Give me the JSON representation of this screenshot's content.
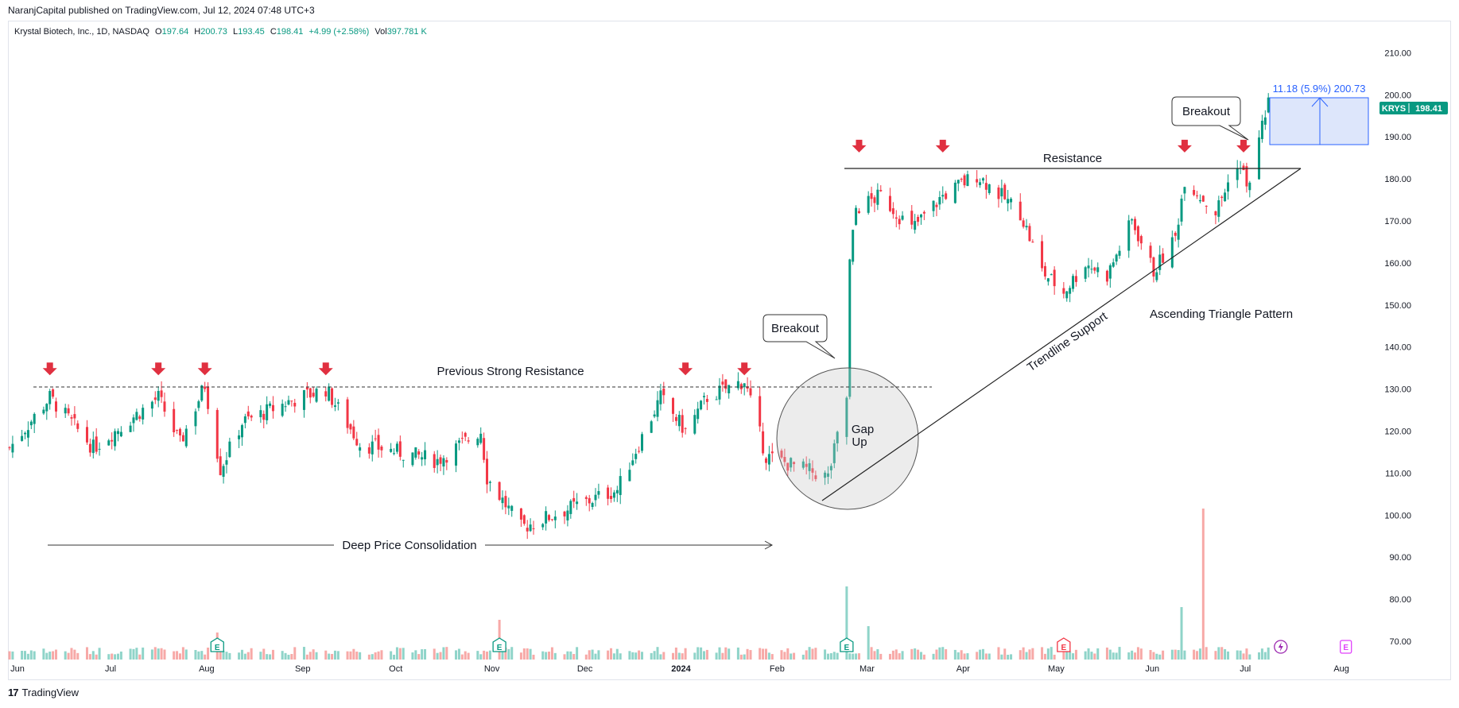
{
  "header": {
    "published": "NaranjCapital published on TradingView.com, Jul 12, 2024 07:48 UTC+3"
  },
  "legend": {
    "symbol": "Krystal Biotech, Inc., 1D, NASDAQ",
    "open_label": "O",
    "open": "197.64",
    "high_label": "H",
    "high": "200.73",
    "low_label": "L",
    "low": "193.45",
    "close_label": "C",
    "close": "198.41",
    "change": "+4.99 (+2.58%)",
    "vol_label": "Vol",
    "volume": "397.781 K"
  },
  "price_tag": {
    "ticker": "KRYS",
    "price": "198.41"
  },
  "footer": {
    "brand": "TradingView"
  },
  "colors": {
    "up": "#089981",
    "down": "#f23645",
    "up_vol": "#8fd4c9",
    "down_vol": "#f7a9a7",
    "arrow": "#e03040",
    "measure": "#2962ff",
    "measure_fill": "#dde6fb",
    "tag_bg": "#089981"
  },
  "annotations": {
    "prev_resistance": "Previous Strong Resistance",
    "consolidation": "Deep Price Consolidation",
    "breakout1": "Breakout",
    "breakout2": "Breakout",
    "gap_line1": "Gap",
    "gap_line2": "Up",
    "resistance": "Resistance",
    "trendline": "Trendline Support",
    "pattern": "Ascending Triangle Pattern",
    "measure": "11.18 (5.9%) 200.73"
  },
  "chart_data": {
    "type": "candlestick",
    "x_axis": {
      "tick_labels": [
        "Jun",
        "Jul",
        "Aug",
        "Sep",
        "Oct",
        "Nov",
        "Dec",
        "2024",
        "Feb",
        "Mar",
        "Apr",
        "May",
        "Jun",
        "Jul",
        "Aug"
      ],
      "range": [
        "2023-06-01",
        "2024-08-12"
      ]
    },
    "y_axis": {
      "tick_labels": [
        "210.00",
        "200.00",
        "190.00",
        "180.00",
        "170.00",
        "160.00",
        "150.00",
        "140.00",
        "130.00",
        "120.00",
        "110.00",
        "100.00",
        "90.00",
        "80.00",
        "70.00"
      ],
      "range": [
        67,
        213
      ],
      "position": "right"
    },
    "grid": false,
    "approx_close_path": [
      {
        "date": "2023-06-01",
        "close": 116
      },
      {
        "date": "2023-06-14",
        "close": 128
      },
      {
        "date": "2023-06-28",
        "close": 116
      },
      {
        "date": "2023-07-19",
        "close": 128
      },
      {
        "date": "2023-07-26",
        "close": 117
      },
      {
        "date": "2023-08-03",
        "close": 131
      },
      {
        "date": "2023-08-08",
        "close": 111
      },
      {
        "date": "2023-08-15",
        "close": 122
      },
      {
        "date": "2023-08-30",
        "close": 127
      },
      {
        "date": "2023-09-11",
        "close": 130
      },
      {
        "date": "2023-09-22",
        "close": 117
      },
      {
        "date": "2023-10-17",
        "close": 113
      },
      {
        "date": "2023-10-31",
        "close": 120
      },
      {
        "date": "2023-11-02",
        "close": 109
      },
      {
        "date": "2023-11-13",
        "close": 97
      },
      {
        "date": "2023-11-30",
        "close": 102
      },
      {
        "date": "2023-12-14",
        "close": 106
      },
      {
        "date": "2023-12-28",
        "close": 128
      },
      {
        "date": "2024-01-05",
        "close": 120
      },
      {
        "date": "2024-01-12",
        "close": 128
      },
      {
        "date": "2024-01-24",
        "close": 132
      },
      {
        "date": "2024-01-31",
        "close": 114
      },
      {
        "date": "2024-02-20",
        "close": 109
      },
      {
        "date": "2024-02-26",
        "close": 128
      },
      {
        "date": "2024-02-27",
        "close": 160
      },
      {
        "date": "2024-02-29",
        "close": 173
      },
      {
        "date": "2024-03-08",
        "close": 176
      },
      {
        "date": "2024-03-18",
        "close": 168
      },
      {
        "date": "2024-03-28",
        "close": 176
      },
      {
        "date": "2024-04-08",
        "close": 181
      },
      {
        "date": "2024-04-22",
        "close": 172
      },
      {
        "date": "2024-04-29",
        "close": 158
      },
      {
        "date": "2024-05-06",
        "close": 153
      },
      {
        "date": "2024-05-13",
        "close": 160
      },
      {
        "date": "2024-05-20",
        "close": 157
      },
      {
        "date": "2024-05-28",
        "close": 170
      },
      {
        "date": "2024-06-04",
        "close": 158
      },
      {
        "date": "2024-06-11",
        "close": 166
      },
      {
        "date": "2024-06-14",
        "close": 180
      },
      {
        "date": "2024-06-24",
        "close": 172
      },
      {
        "date": "2024-07-01",
        "close": 184
      },
      {
        "date": "2024-07-05",
        "close": 178
      },
      {
        "date": "2024-07-08",
        "close": 190
      },
      {
        "date": "2024-07-11",
        "close": 198.41
      }
    ],
    "levels": {
      "previous_strong_resistance": 131,
      "resistance": 184
    },
    "trendline_support": [
      {
        "date": "2024-02-16",
        "price": 103
      },
      {
        "date": "2024-07-20",
        "price": 184
      }
    ],
    "gap_up_date": "2024-02-27",
    "measure_box": {
      "from": 189.55,
      "to": 200.73,
      "change": 11.18,
      "percent": 5.9
    },
    "earnings_dates": [
      "2023-08-07",
      "2023-11-06",
      "2024-02-26",
      "2024-05-06",
      "2024-08-05"
    ],
    "volume_spikes": [
      "2023-08-07",
      "2023-11-06",
      "2024-02-26",
      "2024-03-04",
      "2024-06-13",
      "2024-06-20"
    ]
  }
}
